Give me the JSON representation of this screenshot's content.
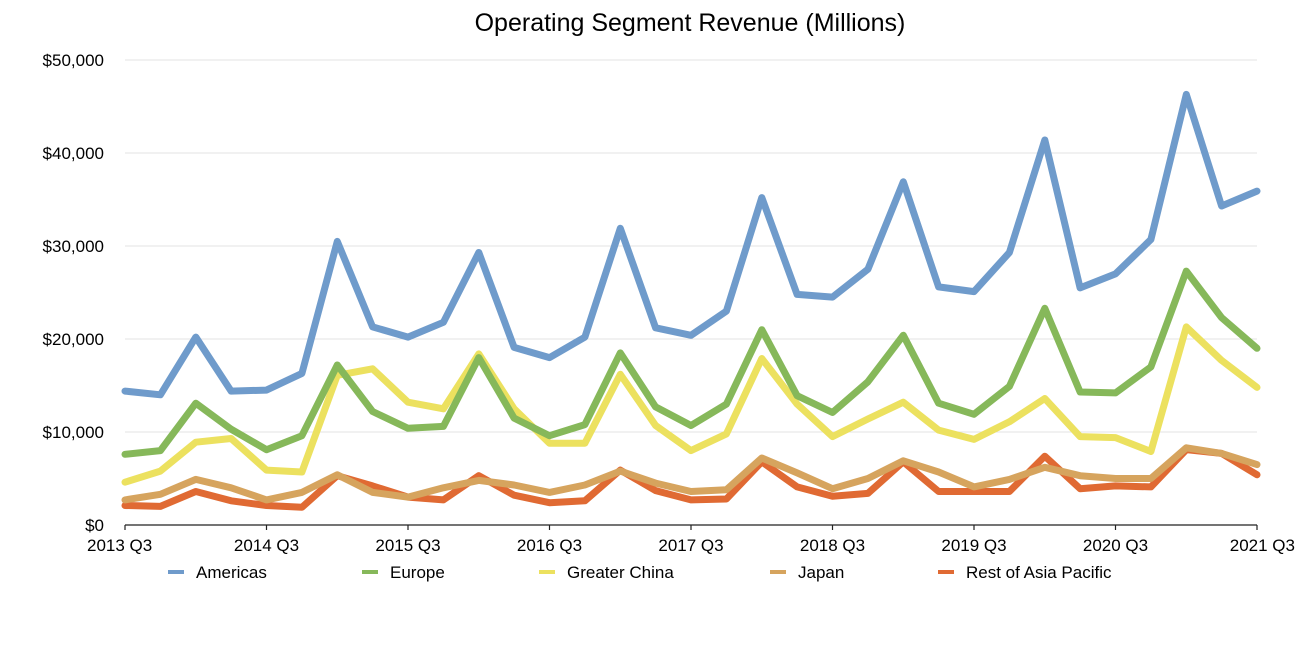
{
  "chart_data": {
    "type": "line",
    "title": "Operating Segment Revenue (Millions)",
    "xlabel": "",
    "ylabel": "",
    "ylim": [
      0,
      50000
    ],
    "y_ticks": [
      0,
      10000,
      20000,
      30000,
      40000,
      50000
    ],
    "y_tick_labels": [
      "$0",
      "$10,000",
      "$20,000",
      "$30,000",
      "$40,000",
      "$50,000"
    ],
    "x": [
      "2013 Q3",
      "2013 Q4",
      "2014 Q1",
      "2014 Q2",
      "2014 Q3",
      "2014 Q4",
      "2015 Q1",
      "2015 Q2",
      "2015 Q3",
      "2015 Q4",
      "2016 Q1",
      "2016 Q2",
      "2016 Q3",
      "2016 Q4",
      "2017 Q1",
      "2017 Q2",
      "2017 Q3",
      "2017 Q4",
      "2018 Q1",
      "2018 Q2",
      "2018 Q3",
      "2018 Q4",
      "2019 Q1",
      "2019 Q2",
      "2019 Q3",
      "2019 Q4",
      "2020 Q1",
      "2020 Q2",
      "2020 Q3",
      "2020 Q4",
      "2021 Q1",
      "2021 Q2",
      "2021 Q3"
    ],
    "x_tick_labels": [
      "2013 Q3",
      "2014 Q3",
      "2015 Q3",
      "2016 Q3",
      "2017 Q3",
      "2018 Q3",
      "2019 Q3",
      "2020 Q3",
      "2021 Q3"
    ],
    "x_tick_indices": [
      0,
      4,
      8,
      12,
      16,
      20,
      24,
      28,
      32
    ],
    "grid": true,
    "legend": "bottom",
    "series": [
      {
        "name": "Americas",
        "color": "#6f9bcb",
        "values": [
          14400,
          14000,
          20200,
          14400,
          14500,
          16300,
          30500,
          21300,
          20200,
          21800,
          29300,
          19100,
          18000,
          20200,
          31900,
          21200,
          20400,
          23000,
          35200,
          24800,
          24500,
          27500,
          36900,
          25600,
          25100,
          29300,
          41400,
          25500,
          27000,
          30700,
          46300,
          34300,
          35900
        ]
      },
      {
        "name": "Europe",
        "color": "#86b85a",
        "values": [
          7600,
          8000,
          13100,
          10300,
          8100,
          9600,
          17200,
          12200,
          10400,
          10600,
          18000,
          11500,
          9600,
          10800,
          18500,
          12700,
          10700,
          13000,
          21000,
          13900,
          12100,
          15400,
          20400,
          13100,
          11900,
          14900,
          23300,
          14300,
          14200,
          17000,
          27300,
          22300,
          19000
        ]
      },
      {
        "name": "Greater China",
        "color": "#ece15f",
        "values": [
          4600,
          5800,
          8900,
          9300,
          5900,
          5700,
          16100,
          16800,
          13200,
          12500,
          18400,
          12500,
          8800,
          8800,
          16200,
          10700,
          8000,
          9800,
          17900,
          13000,
          9500,
          11400,
          13200,
          10200,
          9200,
          11100,
          13600,
          9500,
          9400,
          7900,
          21300,
          17700,
          14800
        ]
      },
      {
        "name": "Japan",
        "color": "#d6a45e",
        "values": [
          2700,
          3300,
          4900,
          4000,
          2700,
          3500,
          5400,
          3500,
          3000,
          4000,
          4800,
          4300,
          3500,
          4300,
          5800,
          4500,
          3600,
          3800,
          7200,
          5600,
          3900,
          5000,
          6900,
          5700,
          4100,
          4900,
          6200,
          5300,
          5000,
          5000,
          8300,
          7700,
          6500
        ]
      },
      {
        "name": "Rest of Asia Pacific",
        "color": "#e06a33",
        "values": [
          2100,
          2000,
          3600,
          2600,
          2100,
          1900,
          5300,
          4200,
          3000,
          2700,
          5300,
          3200,
          2400,
          2600,
          5900,
          3700,
          2700,
          2800,
          6800,
          4100,
          3100,
          3400,
          6800,
          3600,
          3600,
          3600,
          7400,
          3900,
          4200,
          4100,
          8100,
          7700,
          5400
        ]
      }
    ]
  }
}
